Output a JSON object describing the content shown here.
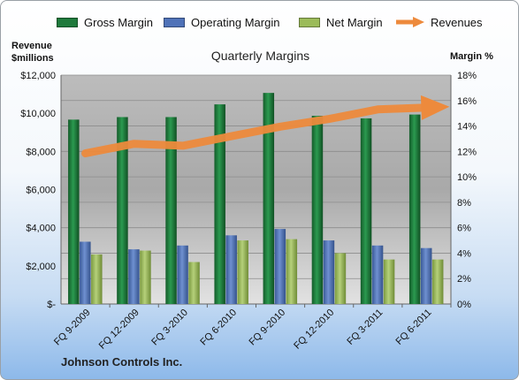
{
  "chart_data": {
    "type": "bar",
    "title": "Quarterly Margins",
    "footer": "Johnson Controls Inc.",
    "categories": [
      "FQ 9-2009",
      "FQ 12-2009",
      "FQ 3-2010",
      "FQ 6-2010",
      "FQ 9-2010",
      "FQ 12-2010",
      "FQ 3-2011",
      "FQ 6-2011"
    ],
    "series": [
      {
        "name": "Gross Margin",
        "axis": "right",
        "unit": "%",
        "color": "#1f7a3c",
        "values": [
          14.5,
          14.7,
          14.7,
          15.7,
          16.6,
          14.8,
          14.6,
          14.9
        ]
      },
      {
        "name": "Operating Margin",
        "axis": "right",
        "unit": "%",
        "color": "#4f72b8",
        "values": [
          4.9,
          4.3,
          4.6,
          5.4,
          5.9,
          5.0,
          4.6,
          4.4
        ]
      },
      {
        "name": "Net Margin",
        "axis": "right",
        "unit": "%",
        "color": "#9bbb59",
        "values": [
          3.9,
          4.2,
          3.3,
          5.0,
          5.1,
          4.0,
          3.5,
          3.5
        ]
      },
      {
        "name": "Revenues",
        "axis": "left",
        "unit": "$millions",
        "color": "#ed8a3c",
        "style": "arrow",
        "values": [
          7900,
          8400,
          8300,
          8800,
          9300,
          9700,
          10200,
          10300
        ]
      }
    ],
    "y_left": {
      "label_lines": [
        "Revenue",
        "$millions"
      ],
      "min": 0,
      "max": 12000,
      "ticks": [
        "$-",
        "$2,000",
        "$4,000",
        "$6,000",
        "$8,000",
        "$10,000",
        "$12,000"
      ]
    },
    "y_right": {
      "label": "Margin %",
      "min": 0,
      "max": 18,
      "ticks": [
        "0%",
        "2%",
        "4%",
        "6%",
        "8%",
        "10%",
        "12%",
        "14%",
        "16%",
        "18%"
      ]
    },
    "grid": true,
    "legend": "top"
  }
}
